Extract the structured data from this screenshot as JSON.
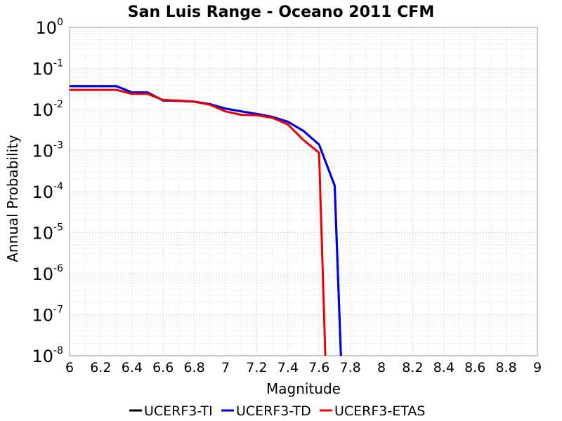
{
  "chart_data": {
    "type": "line",
    "title": "San Luis Range - Oceano 2011 CFM",
    "xlabel": "Magnitude",
    "ylabel": "Annual Probability",
    "xlim": [
      6,
      9
    ],
    "ylim": [
      1e-08,
      1
    ],
    "y_scale": "log",
    "grid": true,
    "legend_position": "bottom",
    "x_ticks": [
      "6",
      "6.2",
      "6.4",
      "6.6",
      "6.8",
      "7",
      "7.2",
      "7.4",
      "7.6",
      "7.8",
      "8",
      "8.2",
      "8.4",
      "8.6",
      "8.8",
      "9"
    ],
    "y_ticks": [
      {
        "base": "10",
        "exp": "0",
        "value": 1
      },
      {
        "base": "10",
        "exp": "-1",
        "value": 0.1
      },
      {
        "base": "10",
        "exp": "-2",
        "value": 0.01
      },
      {
        "base": "10",
        "exp": "-3",
        "value": 0.001
      },
      {
        "base": "10",
        "exp": "-4",
        "value": 0.0001
      },
      {
        "base": "10",
        "exp": "-5",
        "value": 1e-05
      },
      {
        "base": "10",
        "exp": "-6",
        "value": 1e-06
      },
      {
        "base": "10",
        "exp": "-7",
        "value": 1e-07
      },
      {
        "base": "10",
        "exp": "-8",
        "value": 1e-08
      }
    ],
    "series": [
      {
        "name": "UCERF3-TI",
        "color": "#000000",
        "x": [
          6.0,
          6.1,
          6.2,
          6.3,
          6.4,
          6.5,
          6.6,
          6.7,
          6.8,
          6.9,
          7.0,
          7.1,
          7.2,
          7.3,
          7.4,
          7.5,
          7.6,
          7.7,
          7.74
        ],
        "y": [
          0.037,
          0.037,
          0.037,
          0.037,
          0.026,
          0.026,
          0.0165,
          0.0162,
          0.0155,
          0.0135,
          0.0105,
          0.009,
          0.0078,
          0.0066,
          0.005,
          0.003,
          0.0014,
          0.00014,
          1e-08
        ]
      },
      {
        "name": "UCERF3-TD",
        "color": "#0000ee",
        "x": [
          6.0,
          6.1,
          6.2,
          6.3,
          6.4,
          6.5,
          6.6,
          6.7,
          6.8,
          6.9,
          7.0,
          7.1,
          7.2,
          7.3,
          7.4,
          7.5,
          7.6,
          7.7,
          7.74
        ],
        "y": [
          0.037,
          0.037,
          0.037,
          0.037,
          0.026,
          0.026,
          0.0165,
          0.0162,
          0.0155,
          0.0135,
          0.0105,
          0.009,
          0.0078,
          0.0066,
          0.005,
          0.003,
          0.0014,
          0.00014,
          1e-08
        ]
      },
      {
        "name": "UCERF3-ETAS",
        "color": "#ee0000",
        "x": [
          6.0,
          6.1,
          6.2,
          6.3,
          6.4,
          6.5,
          6.6,
          6.7,
          6.8,
          6.9,
          7.0,
          7.1,
          7.2,
          7.3,
          7.4,
          7.5,
          7.6,
          7.64
        ],
        "y": [
          0.03,
          0.03,
          0.03,
          0.03,
          0.024,
          0.024,
          0.017,
          0.0165,
          0.0155,
          0.013,
          0.009,
          0.0074,
          0.0072,
          0.0063,
          0.0043,
          0.0018,
          0.00088,
          1e-08
        ]
      }
    ]
  }
}
